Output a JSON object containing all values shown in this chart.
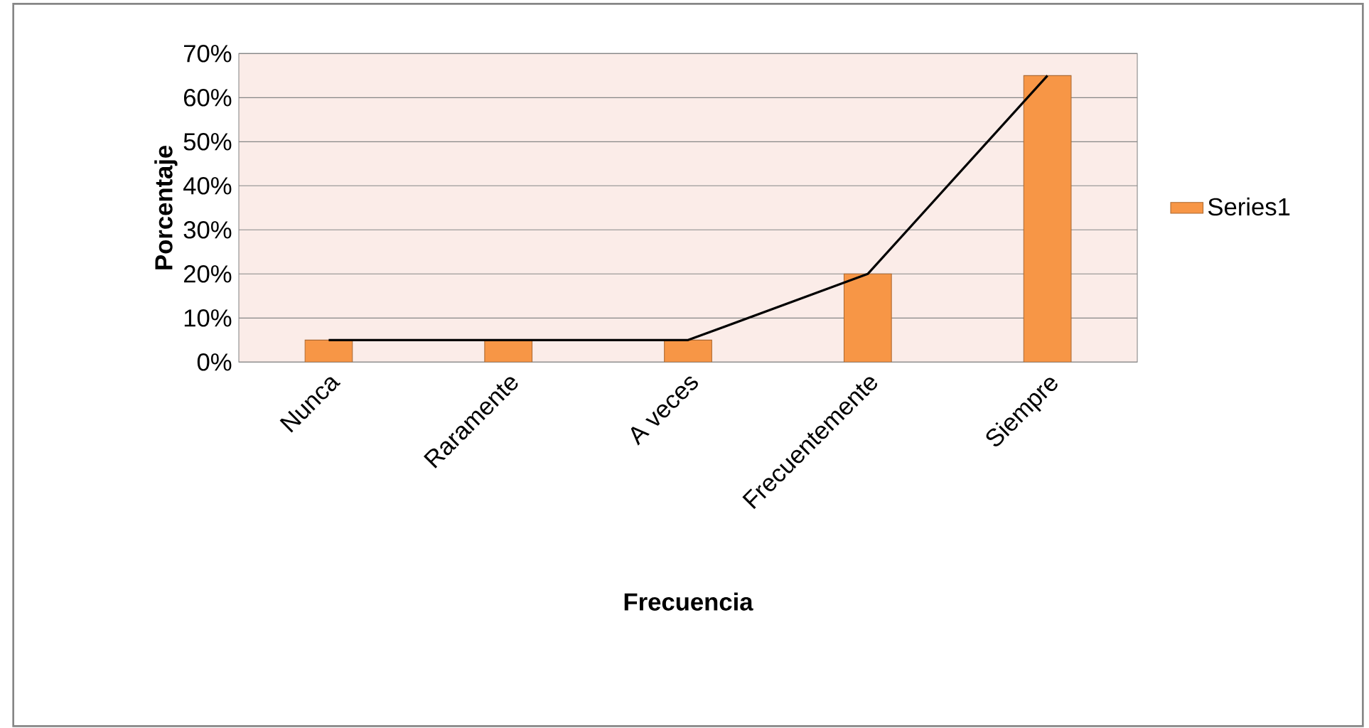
{
  "chart_data": {
    "type": "bar",
    "xlabel": "Frecuencia",
    "ylabel": "Porcentaje",
    "categories": [
      "Nunca",
      "Raramente",
      "A veces",
      "Frecuentemente",
      "Siempre"
    ],
    "series": [
      {
        "name": "Series1",
        "color": "#f79646",
        "values": [
          5,
          5,
          5,
          20,
          65
        ]
      },
      {
        "type": "line",
        "color": "#000000",
        "values": [
          5,
          5,
          5,
          20,
          65
        ]
      }
    ],
    "ylim": [
      0,
      70
    ],
    "yticks": [
      {
        "value": 0,
        "label": "0%"
      },
      {
        "value": 10,
        "label": "10%"
      },
      {
        "value": 20,
        "label": "20%"
      },
      {
        "value": 30,
        "label": "30%"
      },
      {
        "value": 40,
        "label": "40%"
      },
      {
        "value": 50,
        "label": "50%"
      },
      {
        "value": 60,
        "label": "60%"
      },
      {
        "value": 70,
        "label": "70%"
      }
    ],
    "grid": "y",
    "legend": "right"
  }
}
